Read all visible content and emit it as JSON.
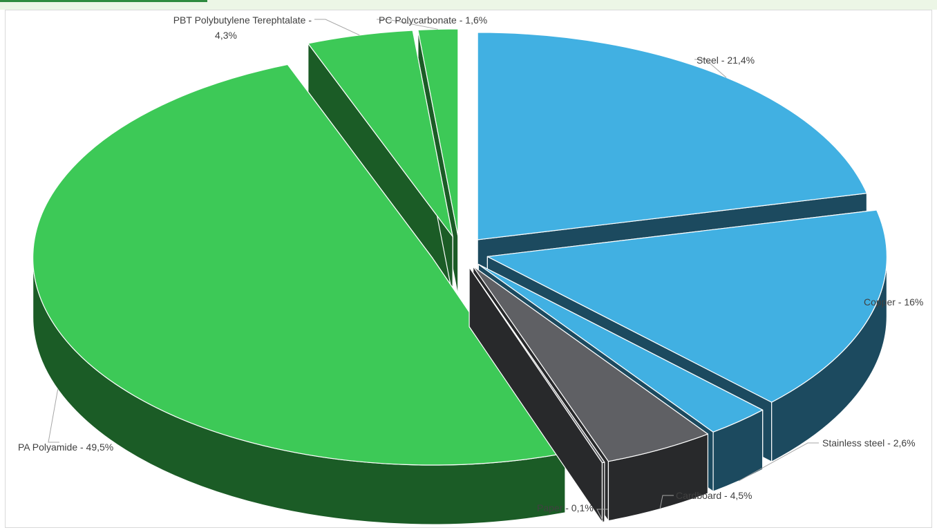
{
  "chart_data": {
    "type": "pie",
    "style": "3d-exploded",
    "title": "",
    "slices": [
      {
        "label": "Steel - 21,4%",
        "name": "Steel",
        "value": 21.4,
        "color": "#41b0e2",
        "side": "#1c4a5f"
      },
      {
        "label": "Copper - 16%",
        "name": "Copper",
        "value": 16.0,
        "color": "#41b0e2",
        "side": "#1c4a5f"
      },
      {
        "label": "Stainless steel - 2,6%",
        "name": "Stainless steel",
        "value": 2.6,
        "color": "#41b0e2",
        "side": "#1c4a5f"
      },
      {
        "label": "Cardboard - 4,5%",
        "name": "Cardboard",
        "value": 4.5,
        "color": "#5f6064",
        "side": "#28292b"
      },
      {
        "label": "Paper - 0,1%",
        "name": "Paper",
        "value": 0.1,
        "color": "#5f6064",
        "side": "#28292b"
      },
      {
        "label": "PA Polyamide - 49,5%",
        "name": "PA Polyamide",
        "value": 49.5,
        "color": "#3dc957",
        "side": "#1b5c26"
      },
      {
        "label_lines": [
          "PBT Polybutylene Terephtalate -",
          "4,3%"
        ],
        "name": "PBT Polybutylene Terephtalate",
        "value": 4.3,
        "color": "#3dc957",
        "side": "#1b5c26"
      },
      {
        "label": "PC Polycarbonate - 1,6%",
        "name": "PC Polycarbonate",
        "value": 1.6,
        "color": "#3dc957",
        "side": "#1b5c26"
      }
    ],
    "legend": "none",
    "data_labels": "outside with leader lines"
  }
}
